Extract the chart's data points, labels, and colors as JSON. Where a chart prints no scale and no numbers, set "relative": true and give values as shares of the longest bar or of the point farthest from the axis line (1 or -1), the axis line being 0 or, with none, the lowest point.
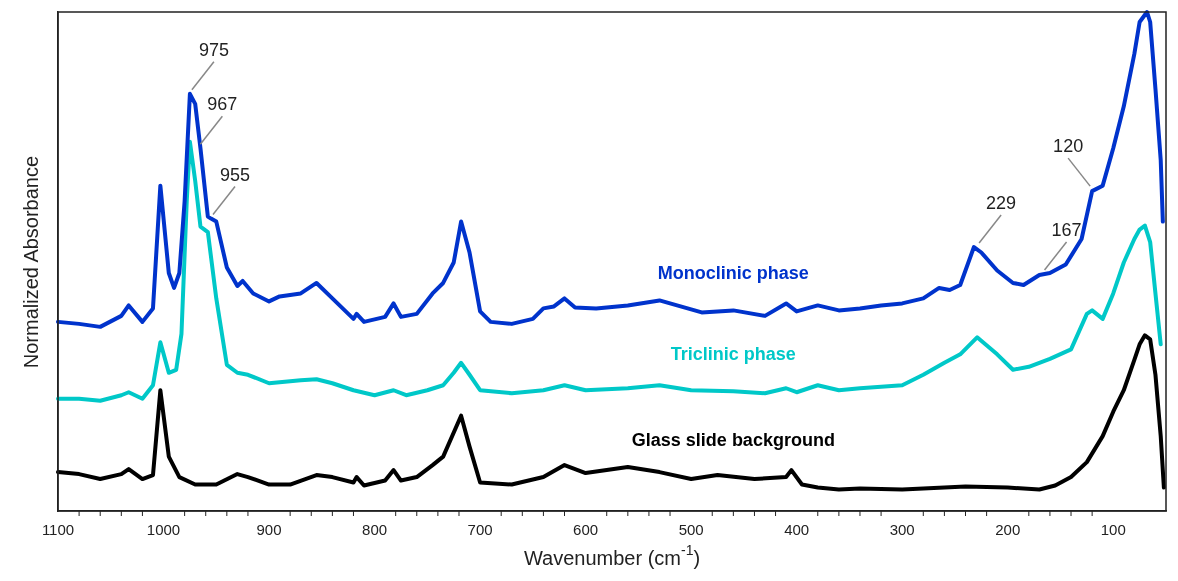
{
  "chart_data": {
    "type": "line",
    "relative": true,
    "xlabel": "Wavenumber (cm$^{-1}$)",
    "ylabel": "Normalized Absorbance",
    "xlim": [
      1100,
      50
    ],
    "xticks": [
      1100,
      1000,
      900,
      800,
      700,
      600,
      500,
      400,
      300,
      200,
      100
    ],
    "grid": false,
    "legend": false,
    "marker": "none",
    "line_style": "solid",
    "series": [
      {
        "name": "Monoclinic phase",
        "color": "#0033cc",
        "x": [
          1100,
          1080,
          1060,
          1040,
          1033,
          1020,
          1010,
          1003,
          995,
          990,
          985,
          980,
          975,
          970,
          965,
          958,
          955,
          950,
          940,
          930,
          925,
          915,
          900,
          890,
          870,
          855,
          840,
          820,
          817,
          810,
          790,
          782,
          775,
          760,
          745,
          735,
          725,
          718,
          710,
          700,
          690,
          670,
          650,
          640,
          630,
          620,
          610,
          590,
          560,
          530,
          510,
          490,
          460,
          430,
          410,
          400,
          380,
          360,
          340,
          320,
          300,
          280,
          265,
          255,
          245,
          232,
          225,
          210,
          195,
          185,
          170,
          160,
          145,
          130,
          120,
          110,
          100,
          90,
          80,
          75,
          68,
          65,
          60,
          55,
          53
        ],
        "values": [
          0.379,
          0.375,
          0.369,
          0.391,
          0.412,
          0.379,
          0.406,
          0.652,
          0.477,
          0.447,
          0.477,
          0.621,
          0.836,
          0.816,
          0.727,
          0.59,
          0.586,
          0.58,
          0.488,
          0.451,
          0.461,
          0.436,
          0.42,
          0.43,
          0.436,
          0.457,
          0.426,
          0.385,
          0.395,
          0.379,
          0.389,
          0.416,
          0.389,
          0.395,
          0.436,
          0.457,
          0.498,
          0.58,
          0.518,
          0.4,
          0.379,
          0.375,
          0.385,
          0.406,
          0.41,
          0.426,
          0.408,
          0.406,
          0.412,
          0.422,
          0.41,
          0.398,
          0.402,
          0.391,
          0.416,
          0.4,
          0.412,
          0.402,
          0.406,
          0.412,
          0.416,
          0.426,
          0.447,
          0.443,
          0.453,
          0.529,
          0.518,
          0.482,
          0.457,
          0.453,
          0.473,
          0.477,
          0.494,
          0.545,
          0.641,
          0.652,
          0.727,
          0.811,
          0.916,
          0.98,
          1,
          0.98,
          0.846,
          0.703,
          0.58
        ]
      },
      {
        "name": "Triclinic phase",
        "color": "#00c8c8",
        "x": [
          1100,
          1080,
          1060,
          1040,
          1033,
          1020,
          1010,
          1003,
          995,
          988,
          983,
          978,
          975,
          970,
          965,
          958,
          950,
          940,
          930,
          920,
          900,
          870,
          855,
          840,
          820,
          800,
          782,
          770,
          750,
          735,
          725,
          718,
          710,
          700,
          670,
          640,
          620,
          600,
          560,
          530,
          500,
          460,
          430,
          410,
          400,
          380,
          360,
          340,
          300,
          280,
          260,
          245,
          229,
          210,
          195,
          180,
          160,
          140,
          125,
          120,
          110,
          100,
          90,
          80,
          75,
          70,
          65,
          60,
          55
        ],
        "values": [
          0.225,
          0.225,
          0.221,
          0.232,
          0.238,
          0.225,
          0.252,
          0.338,
          0.277,
          0.283,
          0.355,
          0.621,
          0.74,
          0.662,
          0.57,
          0.559,
          0.426,
          0.293,
          0.277,
          0.273,
          0.256,
          0.262,
          0.264,
          0.256,
          0.242,
          0.232,
          0.242,
          0.232,
          0.242,
          0.252,
          0.277,
          0.297,
          0.273,
          0.242,
          0.236,
          0.242,
          0.252,
          0.242,
          0.246,
          0.252,
          0.242,
          0.24,
          0.236,
          0.246,
          0.238,
          0.252,
          0.242,
          0.246,
          0.252,
          0.273,
          0.297,
          0.314,
          0.348,
          0.314,
          0.283,
          0.289,
          0.305,
          0.324,
          0.395,
          0.402,
          0.385,
          0.436,
          0.498,
          0.545,
          0.564,
          0.572,
          0.539,
          0.436,
          0.334
        ]
      },
      {
        "name": "Glass slide background",
        "color": "#000000",
        "x": [
          1100,
          1080,
          1060,
          1040,
          1033,
          1020,
          1010,
          1003,
          995,
          985,
          970,
          950,
          930,
          920,
          900,
          880,
          855,
          840,
          820,
          817,
          810,
          790,
          782,
          775,
          760,
          745,
          735,
          718,
          710,
          700,
          670,
          640,
          620,
          600,
          560,
          530,
          500,
          475,
          440,
          410,
          405,
          395,
          380,
          360,
          340,
          300,
          240,
          200,
          170,
          155,
          140,
          125,
          110,
          100,
          90,
          80,
          75,
          70,
          65,
          60,
          55,
          52
        ],
        "values": [
          0.078,
          0.074,
          0.064,
          0.074,
          0.084,
          0.064,
          0.072,
          0.242,
          0.109,
          0.068,
          0.053,
          0.053,
          0.074,
          0.068,
          0.053,
          0.053,
          0.072,
          0.068,
          0.057,
          0.068,
          0.051,
          0.061,
          0.082,
          0.061,
          0.068,
          0.092,
          0.109,
          0.191,
          0.129,
          0.057,
          0.053,
          0.068,
          0.092,
          0.076,
          0.088,
          0.078,
          0.064,
          0.072,
          0.064,
          0.068,
          0.082,
          0.053,
          0.047,
          0.043,
          0.045,
          0.043,
          0.049,
          0.047,
          0.043,
          0.051,
          0.068,
          0.098,
          0.15,
          0.199,
          0.242,
          0.303,
          0.334,
          0.352,
          0.344,
          0.273,
          0.15,
          0.047
        ]
      }
    ],
    "annotations": [
      {
        "text": "975",
        "x": 975,
        "y": 0.836
      },
      {
        "text": "967",
        "x": 967,
        "y": 0.727
      },
      {
        "text": "955",
        "x": 955,
        "y": 0.586
      },
      {
        "text": "229",
        "x": 229,
        "y": 0.529
      },
      {
        "text": "167",
        "x": 167,
        "y": 0.475
      },
      {
        "text": "120",
        "x": 120,
        "y": 0.643
      }
    ]
  }
}
